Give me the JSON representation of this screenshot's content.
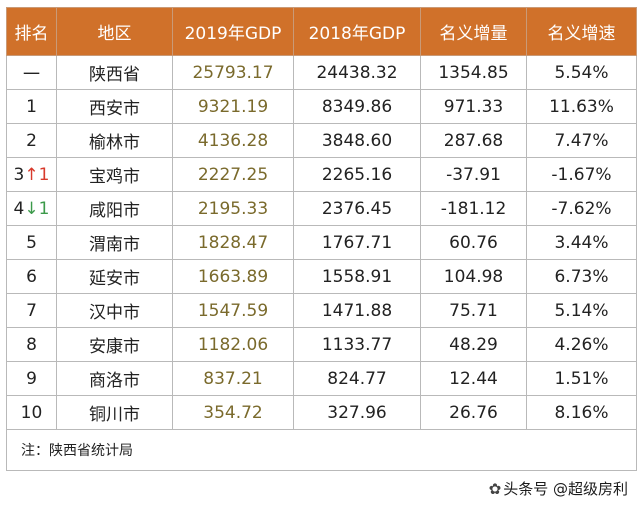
{
  "table": {
    "headers": [
      "排名",
      "地区",
      "2019年GDP",
      "2018年GDP",
      "名义增量",
      "名义增速"
    ],
    "rows": [
      {
        "rank": "一",
        "change": "",
        "dir": "",
        "region": "陕西省",
        "gdp2019": "25793.17",
        "gdp2018": "24438.32",
        "increase": "1354.85",
        "growth": "5.54%"
      },
      {
        "rank": "1",
        "change": "",
        "dir": "",
        "region": "西安市",
        "gdp2019": "9321.19",
        "gdp2018": "8349.86",
        "increase": "971.33",
        "growth": "11.63%"
      },
      {
        "rank": "2",
        "change": "",
        "dir": "",
        "region": "榆林市",
        "gdp2019": "4136.28",
        "gdp2018": "3848.60",
        "increase": "287.68",
        "growth": "7.47%"
      },
      {
        "rank": "3",
        "change": "↑1",
        "dir": "up",
        "region": "宝鸡市",
        "gdp2019": "2227.25",
        "gdp2018": "2265.16",
        "increase": "-37.91",
        "growth": "-1.67%"
      },
      {
        "rank": "4",
        "change": "↓1",
        "dir": "down",
        "region": "咸阳市",
        "gdp2019": "2195.33",
        "gdp2018": "2376.45",
        "increase": "-181.12",
        "growth": "-7.62%"
      },
      {
        "rank": "5",
        "change": "",
        "dir": "",
        "region": "渭南市",
        "gdp2019": "1828.47",
        "gdp2018": "1767.71",
        "increase": "60.76",
        "growth": "3.44%"
      },
      {
        "rank": "6",
        "change": "",
        "dir": "",
        "region": "延安市",
        "gdp2019": "1663.89",
        "gdp2018": "1558.91",
        "increase": "104.98",
        "growth": "6.73%"
      },
      {
        "rank": "7",
        "change": "",
        "dir": "",
        "region": "汉中市",
        "gdp2019": "1547.59",
        "gdp2018": "1471.88",
        "increase": "75.71",
        "growth": "5.14%"
      },
      {
        "rank": "8",
        "change": "",
        "dir": "",
        "region": "安康市",
        "gdp2019": "1182.06",
        "gdp2018": "1133.77",
        "increase": "48.29",
        "growth": "4.26%"
      },
      {
        "rank": "9",
        "change": "",
        "dir": "",
        "region": "商洛市",
        "gdp2019": "837.21",
        "gdp2018": "824.77",
        "increase": "12.44",
        "growth": "1.51%"
      },
      {
        "rank": "10",
        "change": "",
        "dir": "",
        "region": "铜川市",
        "gdp2019": "354.72",
        "gdp2018": "327.96",
        "increase": "26.76",
        "growth": "8.16%"
      }
    ],
    "note": "注：陕西省统计局"
  },
  "watermark": {
    "text": "头条号 @超级房利"
  },
  "colors": {
    "header_bg": "#d0712a",
    "up": "#d83a2c",
    "down": "#3c9a4a",
    "gdp2019_text": "#7a6a2c"
  }
}
